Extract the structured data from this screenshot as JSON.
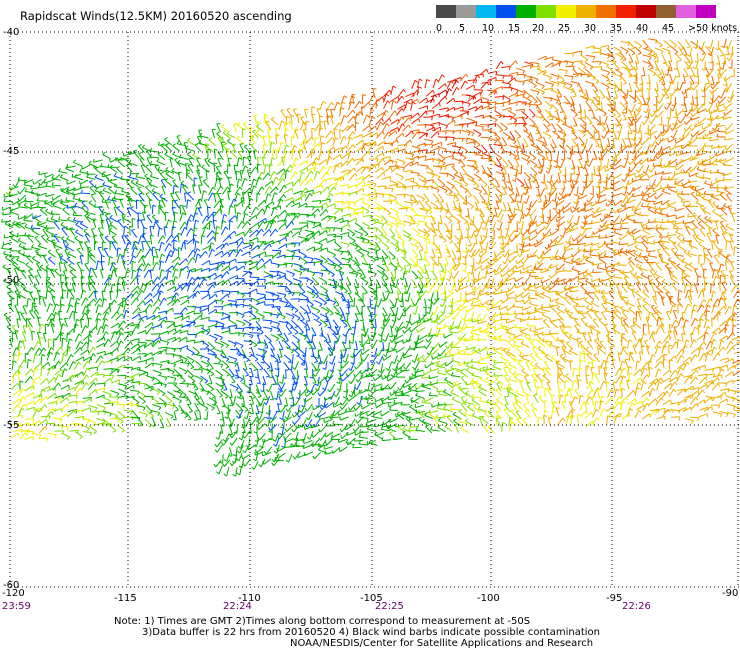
{
  "title": "Rapidscat Winds(12.5KM) 20160520 ascending",
  "legend": {
    "labels": [
      "0",
      "5",
      "10",
      "15",
      "20",
      "25",
      "30",
      "35",
      "40",
      "45",
      ">50 knots"
    ],
    "colors": [
      "#4a4a4a",
      "#9a9a9a",
      "#00b8f0",
      "#0050f0",
      "#00b000",
      "#80e000",
      "#f0f000",
      "#f0b000",
      "#f07000",
      "#f02000",
      "#c00000",
      "#906030",
      "#e060e0",
      "#c000c0",
      "#300070"
    ]
  },
  "axes": {
    "lon_ticks": [
      "-120",
      "-115",
      "-110",
      "-105",
      "-100",
      "-95",
      "-90"
    ],
    "lat_ticks": [
      "-40",
      "-45",
      "-50",
      "-55",
      "-60"
    ]
  },
  "times": [
    "23:59",
    "22:24",
    "22:25",
    "22:26"
  ],
  "notes": [
    "Note: 1) Times are GMT 2)Times along bottom correspond to measurement at -50S",
    "3)Data buffer is 22 hrs from 20160520 4) Black wind barbs indicate possible contamination",
    "NOAA/NESDIS/Center for Satellite Applications and Research"
  ]
}
